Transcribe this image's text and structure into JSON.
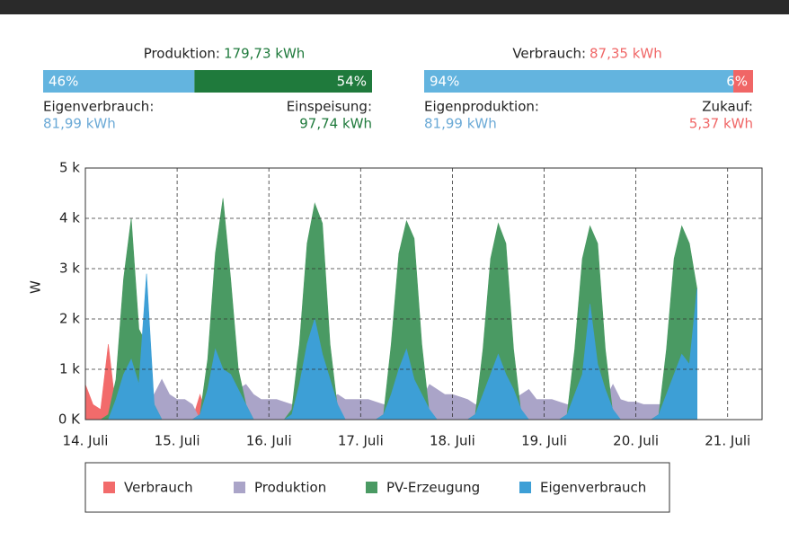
{
  "summary": [
    {
      "label": "Produktion:",
      "total": "179,73 kWh",
      "segments": [
        {
          "share": 46,
          "share_label": "46%",
          "name": "Eigenverbrauch:",
          "amount": "81,99 kWh",
          "color": "#63b4df"
        },
        {
          "share": 54,
          "share_label": "54%",
          "name": "Einspeisung:",
          "amount": "97,74 kWh",
          "color": "#1f7a3c"
        }
      ]
    },
    {
      "label": "Verbrauch:",
      "total": "87,35 kWh",
      "segments": [
        {
          "share": 94,
          "share_label": "94%",
          "name": "Eigenproduktion:",
          "amount": "81,99 kWh",
          "color": "#63b4df"
        },
        {
          "share": 6,
          "share_label": "6%",
          "name": "Zukauf:",
          "amount": "5,37 kWh",
          "color": "#f06666"
        }
      ]
    }
  ],
  "chart_data": {
    "type": "area",
    "ylabel": "W",
    "xlim": [
      0,
      177
    ],
    "ylim": [
      0,
      5000
    ],
    "xticks": [
      {
        "value": 0,
        "label": "14. Juli"
      },
      {
        "value": 24,
        "label": "15. Juli"
      },
      {
        "value": 48,
        "label": "16. Juli"
      },
      {
        "value": 72,
        "label": "17. Juli"
      },
      {
        "value": 96,
        "label": "18. Juli"
      },
      {
        "value": 120,
        "label": "19. Juli"
      },
      {
        "value": 144,
        "label": "20. Juli"
      },
      {
        "value": 168,
        "label": "21. Juli"
      }
    ],
    "yticks": [
      {
        "value": 0,
        "label": "0 K"
      },
      {
        "value": 1000,
        "label": "1 k"
      },
      {
        "value": 2000,
        "label": "2 k"
      },
      {
        "value": 3000,
        "label": "3 k"
      },
      {
        "value": 4000,
        "label": "4 k"
      },
      {
        "value": 5000,
        "label": "5 k"
      }
    ],
    "grid": true,
    "x": [
      0,
      2,
      4,
      6,
      8,
      10,
      12,
      14,
      16,
      18,
      20,
      22,
      24,
      26,
      28,
      30,
      32,
      34,
      36,
      38,
      40,
      42,
      44,
      46,
      48,
      50,
      52,
      54,
      56,
      58,
      60,
      62,
      64,
      66,
      68,
      70,
      72,
      74,
      76,
      78,
      80,
      82,
      84,
      86,
      88,
      90,
      92,
      94,
      96,
      98,
      100,
      102,
      104,
      106,
      108,
      110,
      112,
      114,
      116,
      118,
      120,
      122,
      124,
      126,
      128,
      130,
      132,
      134,
      136,
      138,
      140,
      142,
      144,
      146,
      148,
      150,
      152,
      154,
      156,
      158,
      160
    ],
    "series": [
      {
        "name": "Verbrauch",
        "color": "#f26b6b",
        "values": [
          700,
          300,
          200,
          1500,
          200,
          0,
          0,
          0,
          0,
          0,
          0,
          0,
          0,
          0,
          0,
          500,
          0,
          0,
          0,
          0,
          0,
          0,
          0,
          0,
          0,
          0,
          0,
          0,
          0,
          0,
          0,
          0,
          0,
          0,
          0,
          0,
          0,
          0,
          0,
          0,
          0,
          0,
          0,
          0,
          0,
          0,
          0,
          0,
          0,
          0,
          0,
          0,
          0,
          0,
          0,
          0,
          0,
          0,
          0,
          0,
          0,
          0,
          0,
          0,
          0,
          0,
          0,
          0,
          0,
          0,
          0,
          0,
          0,
          0,
          0,
          0,
          0,
          0,
          0,
          0,
          0
        ]
      },
      {
        "name": "Produktion",
        "color": "#aaa4c8",
        "values": [
          0,
          0,
          0,
          0,
          300,
          400,
          400,
          400,
          500,
          500,
          800,
          500,
          400,
          400,
          300,
          0,
          300,
          300,
          300,
          500,
          600,
          700,
          500,
          400,
          400,
          400,
          350,
          300,
          300,
          300,
          300,
          400,
          400,
          500,
          400,
          400,
          400,
          400,
          350,
          300,
          300,
          300,
          300,
          400,
          400,
          700,
          600,
          500,
          500,
          450,
          400,
          300,
          300,
          300,
          300,
          400,
          400,
          500,
          600,
          400,
          400,
          400,
          350,
          300,
          300,
          300,
          300,
          400,
          400,
          700,
          400,
          350,
          350,
          300,
          300,
          300,
          300,
          300,
          300,
          400,
          400
        ]
      },
      {
        "name": "PV-Erzeugung",
        "color": "#4a9a63",
        "values": [
          0,
          0,
          0,
          100,
          800,
          2800,
          4000,
          1800,
          1500,
          300,
          0,
          0,
          0,
          0,
          0,
          100,
          1200,
          3300,
          4400,
          2800,
          1000,
          300,
          0,
          0,
          0,
          0,
          0,
          200,
          1500,
          3500,
          4300,
          3900,
          1500,
          200,
          0,
          0,
          0,
          0,
          0,
          100,
          1500,
          3300,
          3950,
          3600,
          1500,
          100,
          0,
          0,
          0,
          0,
          0,
          100,
          1400,
          3200,
          3900,
          3500,
          1400,
          100,
          0,
          0,
          0,
          0,
          0,
          100,
          1400,
          3200,
          3850,
          3500,
          1400,
          100,
          0,
          0,
          0,
          0,
          0,
          100,
          1400,
          3200,
          3850,
          3500,
          2600
        ]
      },
      {
        "name": "Eigenverbrauch",
        "color": "#3d9fd6",
        "values": [
          0,
          0,
          0,
          0,
          400,
          900,
          1200,
          700,
          2900,
          300,
          0,
          0,
          0,
          0,
          0,
          100,
          600,
          1400,
          1000,
          900,
          600,
          300,
          0,
          0,
          0,
          0,
          0,
          100,
          700,
          1500,
          2000,
          1300,
          800,
          300,
          0,
          0,
          0,
          0,
          0,
          100,
          500,
          1000,
          1400,
          800,
          500,
          200,
          0,
          0,
          0,
          0,
          0,
          100,
          500,
          900,
          1300,
          900,
          600,
          200,
          0,
          0,
          0,
          0,
          0,
          100,
          500,
          900,
          2300,
          1100,
          600,
          200,
          0,
          0,
          0,
          0,
          0,
          100,
          500,
          900,
          1300,
          1100,
          2600
        ]
      }
    ]
  }
}
